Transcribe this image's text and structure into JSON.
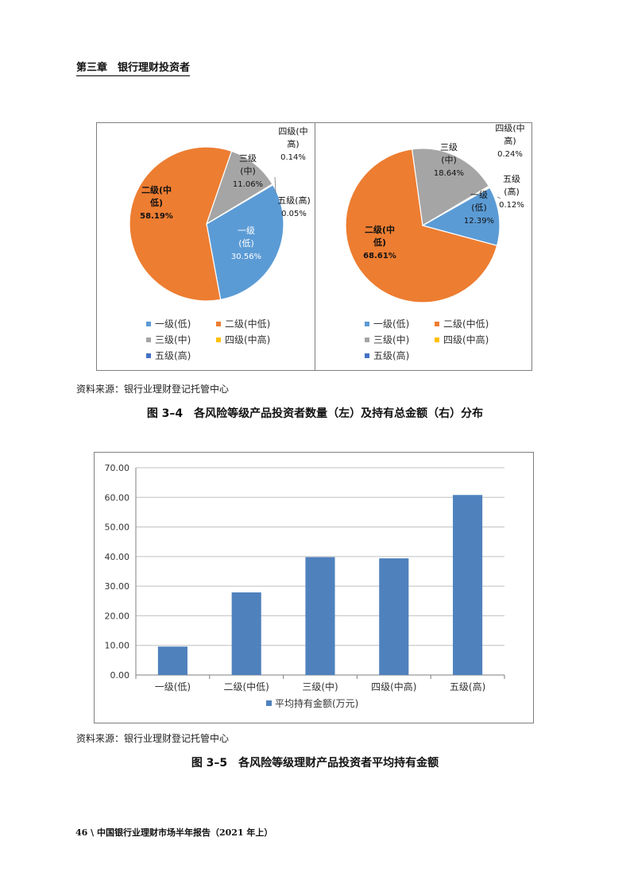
{
  "header": {
    "chapter": "第三章",
    "title": "银行理财投资者"
  },
  "colors": {
    "level1": "#5b9bd5",
    "level2": "#ed7d31",
    "level3": "#a5a5a5",
    "level4": "#ffc000",
    "level5": "#4472c4",
    "bar": "#4f81bd"
  },
  "chart_data": [
    {
      "type": "pie",
      "title": "",
      "slices": [
        {
          "name": "一级(低)",
          "label_lines": [
            "一级",
            "(低)"
          ],
          "value": 30.56,
          "pct": "30.56%"
        },
        {
          "name": "二级(中低)",
          "label_lines": [
            "二级(中",
            "低)"
          ],
          "value": 58.19,
          "pct": "58.19%"
        },
        {
          "name": "三级(中)",
          "label_lines": [
            "三级",
            "(中)"
          ],
          "value": 11.06,
          "pct": "11.06%"
        },
        {
          "name": "四级(中高)",
          "label_lines": [
            "四级(中",
            "高)"
          ],
          "value": 0.14,
          "pct": "0.14%"
        },
        {
          "name": "五级(高)",
          "label_lines": [
            "五级(高)"
          ],
          "value": 0.05,
          "pct": "0.05%"
        }
      ],
      "legend": [
        "一级(低)",
        "二级(中低)",
        "三级(中)",
        "四级(中高)",
        "五级(高)"
      ],
      "legend_position": "bottom"
    },
    {
      "type": "pie",
      "title": "",
      "slices": [
        {
          "name": "一级(低)",
          "label_lines": [
            "一级",
            "(低)"
          ],
          "value": 12.39,
          "pct": "12.39%"
        },
        {
          "name": "二级(中低)",
          "label_lines": [
            "二级(中",
            "低)"
          ],
          "value": 68.61,
          "pct": "68.61%"
        },
        {
          "name": "三级(中)",
          "label_lines": [
            "三级",
            "(中)"
          ],
          "value": 18.64,
          "pct": "18.64%"
        },
        {
          "name": "四级(中高)",
          "label_lines": [
            "四级(中",
            "高)"
          ],
          "value": 0.24,
          "pct": "0.24%"
        },
        {
          "name": "五级(高)",
          "label_lines": [
            "五级",
            "(高)"
          ],
          "value": 0.12,
          "pct": "0.12%"
        }
      ],
      "legend": [
        "一级(低)",
        "二级(中低)",
        "三级(中)",
        "四级(中高)",
        "五级(高)"
      ],
      "legend_position": "bottom"
    },
    {
      "type": "bar",
      "title": "",
      "categories": [
        "一级(低)",
        "二级(中低)",
        "三级(中)",
        "四级(中高)",
        "五级(高)"
      ],
      "series": [
        {
          "name": "平均持有金额(万元)",
          "values": [
            9.6,
            27.9,
            39.8,
            39.4,
            60.8
          ]
        }
      ],
      "ylim": [
        0,
        70
      ],
      "yticks": [
        "0.00",
        "10.00",
        "20.00",
        "30.00",
        "40.00",
        "50.00",
        "60.00",
        "70.00"
      ],
      "grid": true,
      "legend_position": "bottom"
    }
  ],
  "figure1": {
    "source": "资料来源：银行业理财登记托管中心",
    "caption": "图 3–4　各风险等级产品投资者数量（左）及持有总金额（右）分布"
  },
  "figure2": {
    "source": "资料来源：银行业理财登记托管中心",
    "caption": "图 3–5　各风险等级理财产品投资者平均持有金额"
  },
  "footer": "46 \\  中国银行业理财市场半年报告（2021 年上）"
}
